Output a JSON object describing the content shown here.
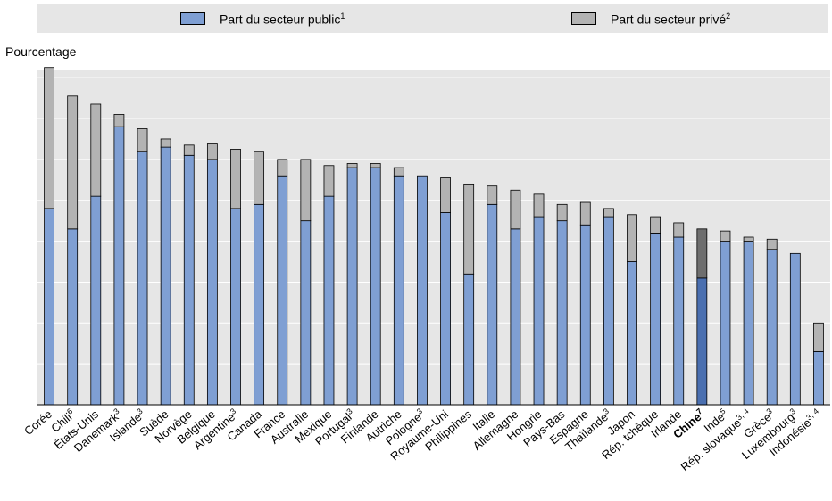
{
  "legend": {
    "public_label": "Part du secteur public",
    "public_sup": "1",
    "private_label": "Part du secteur privé",
    "private_sup": "2"
  },
  "colors": {
    "public": "#7f9fd3",
    "private": "#b3b3b3",
    "highlight_public": "#4a6fb0",
    "highlight_private": "#6e6e6e",
    "legend_bg": "#e6e6e6",
    "plot_bg": "#e6e6e6"
  },
  "chart_data": {
    "type": "bar",
    "stacked": true,
    "ylabel": "Pourcentage",
    "ylim": [
      0,
      8.2
    ],
    "gridlines": true,
    "yticks_labeled": false,
    "categories": [
      {
        "label": "Corée",
        "sup": ""
      },
      {
        "label": "Chili",
        "sup": "6"
      },
      {
        "label": "États-Unis",
        "sup": ""
      },
      {
        "label": "Danemark",
        "sup": "3"
      },
      {
        "label": "Islande",
        "sup": "3"
      },
      {
        "label": "Suède",
        "sup": ""
      },
      {
        "label": "Norvège",
        "sup": ""
      },
      {
        "label": "Belgique",
        "sup": ""
      },
      {
        "label": "Argentine",
        "sup": "3"
      },
      {
        "label": "Canada",
        "sup": ""
      },
      {
        "label": "France",
        "sup": ""
      },
      {
        "label": "Australie",
        "sup": ""
      },
      {
        "label": "Mexique",
        "sup": ""
      },
      {
        "label": "Portugal",
        "sup": "3"
      },
      {
        "label": "Finlande",
        "sup": ""
      },
      {
        "label": "Autriche",
        "sup": ""
      },
      {
        "label": "Pologne",
        "sup": "3"
      },
      {
        "label": "Royaume-Uni",
        "sup": ""
      },
      {
        "label": "Philippines",
        "sup": ""
      },
      {
        "label": "Italie",
        "sup": ""
      },
      {
        "label": "Allemagne",
        "sup": ""
      },
      {
        "label": "Hongrie",
        "sup": ""
      },
      {
        "label": "Pays-Bas",
        "sup": ""
      },
      {
        "label": "Espagne",
        "sup": ""
      },
      {
        "label": "Thaïlande",
        "sup": "3"
      },
      {
        "label": "Japon",
        "sup": ""
      },
      {
        "label": "Rép. tchèque",
        "sup": ""
      },
      {
        "label": "Irlande",
        "sup": ""
      },
      {
        "label": "Chine",
        "sup": "7",
        "highlight": true
      },
      {
        "label": "Inde",
        "sup": "5"
      },
      {
        "label": "Rép. slovaque",
        "sup": "3, 4"
      },
      {
        "label": "Grèce",
        "sup": "3"
      },
      {
        "label": "Luxembourg",
        "sup": "3"
      },
      {
        "label": "Indonésie",
        "sup": "3, 4"
      }
    ],
    "series": [
      {
        "name": "Part du secteur public",
        "values": [
          4.8,
          4.3,
          5.1,
          6.8,
          6.2,
          6.3,
          6.1,
          6.0,
          4.8,
          4.9,
          5.6,
          4.5,
          5.1,
          5.8,
          5.8,
          5.6,
          5.6,
          4.7,
          3.2,
          4.9,
          4.3,
          4.6,
          4.5,
          4.4,
          4.6,
          3.5,
          4.2,
          4.1,
          3.1,
          4.0,
          4.0,
          3.8,
          3.7,
          1.3
        ]
      },
      {
        "name": "Part du secteur privé",
        "values": [
          3.45,
          3.25,
          2.25,
          0.3,
          0.55,
          0.2,
          0.25,
          0.4,
          1.45,
          1.3,
          0.4,
          1.5,
          0.75,
          0.1,
          0.1,
          0.2,
          0.0,
          0.85,
          2.2,
          0.45,
          0.95,
          0.55,
          0.4,
          0.55,
          0.2,
          1.15,
          0.4,
          0.35,
          1.2,
          0.25,
          0.1,
          0.25,
          0.0,
          0.7
        ]
      }
    ]
  }
}
